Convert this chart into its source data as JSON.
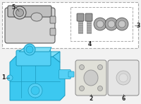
{
  "bg_color": "#f2f2f2",
  "line_color": "#444444",
  "blue_fill": "#3cc8f0",
  "blue_dark": "#1a9abf",
  "blue_mid": "#55d0f5",
  "blue_light": "#80dff7",
  "gray_light": "#e8e8e8",
  "gray_mid": "#c8c8c8",
  "gray_dark": "#999999",
  "white": "#ffffff",
  "label_fs": 5.5,
  "lw_main": 0.7,
  "lw_thin": 0.5
}
